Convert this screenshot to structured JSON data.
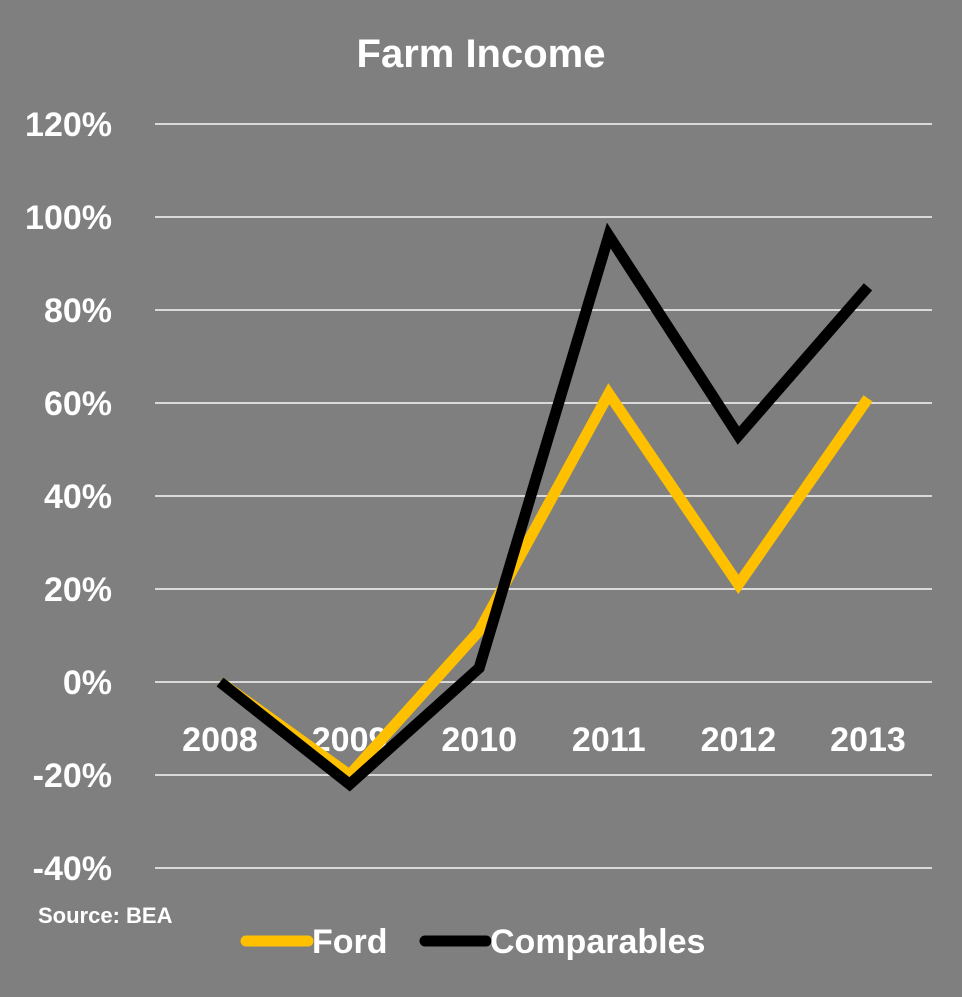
{
  "chart_data": {
    "type": "line",
    "title": "Farm Income",
    "xlabel": "",
    "ylabel": "",
    "categories": [
      "2008",
      "2009",
      "2010",
      "2011",
      "2012",
      "2013"
    ],
    "y_ticks": [
      "120%",
      "100%",
      "80%",
      "60%",
      "40%",
      "20%",
      "0%",
      "-20%",
      "-40%"
    ],
    "y_tick_values": [
      120,
      100,
      80,
      60,
      40,
      20,
      0,
      -20,
      -40
    ],
    "ylim": [
      -40,
      120
    ],
    "grid": true,
    "legend": "bottom",
    "series": [
      {
        "name": "Ford",
        "color": "#ffc000",
        "values": [
          0,
          -20,
          11,
          62,
          21,
          61
        ]
      },
      {
        "name": "Comparables",
        "color": "#000000",
        "values": [
          0,
          -22,
          3,
          96,
          53,
          85
        ]
      }
    ],
    "annotations": {
      "source": "Source: BEA"
    }
  }
}
